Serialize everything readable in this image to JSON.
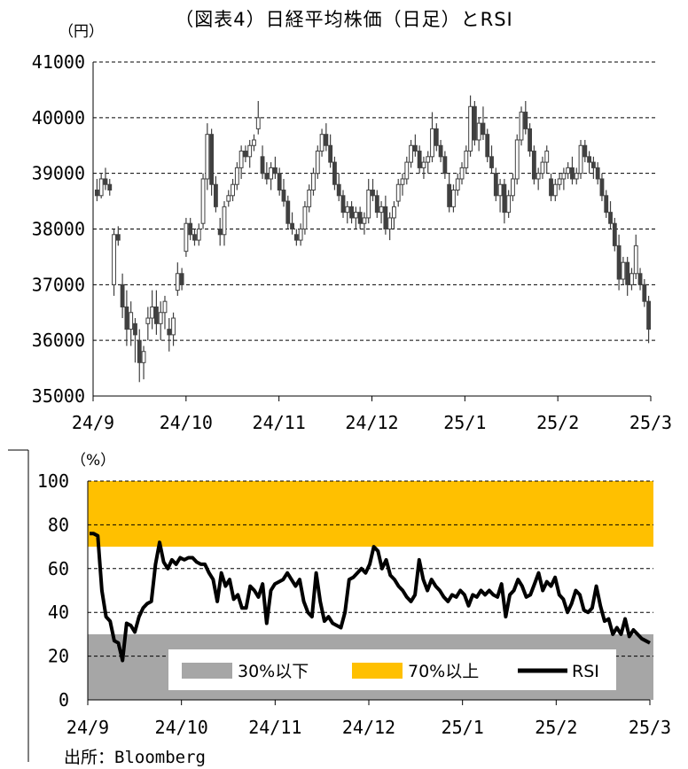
{
  "title": "（図表4）日経平均株価（日足）とRSI",
  "source": "出所：Bloomberg",
  "colors": {
    "up_candle": "#ffffff",
    "down_candle": "#404040",
    "candle_outline": "#404040",
    "band_low": "#a6a6a6",
    "band_high": "#ffc000",
    "rsi_line": "#000000"
  },
  "chart_data": [
    {
      "type": "candlestick",
      "unit_label": "（円）",
      "ylim": [
        35000,
        41000
      ],
      "y_ticks": [
        "35000",
        "36000",
        "37000",
        "38000",
        "39000",
        "40000",
        "41000"
      ],
      "x_ticks": [
        "24/9",
        "24/10",
        "24/11",
        "24/12",
        "25/1",
        "25/2",
        "25/3"
      ],
      "grid": "horizontal dashed",
      "candles": [
        [
          38700,
          38900,
          38500,
          38600
        ],
        [
          38600,
          39000,
          38550,
          38900
        ],
        [
          38900,
          39100,
          38700,
          38800
        ],
        [
          38800,
          38900,
          38600,
          38700
        ],
        [
          37000,
          38000,
          36800,
          37900
        ],
        [
          37900,
          38050,
          37700,
          37800
        ],
        [
          37000,
          37200,
          36400,
          36600
        ],
        [
          36600,
          36900,
          35900,
          36200
        ],
        [
          36200,
          36700,
          35900,
          36500
        ],
        [
          36300,
          36400,
          35600,
          36100
        ],
        [
          36000,
          36200,
          35250,
          35600
        ],
        [
          35600,
          35900,
          35300,
          35800
        ],
        [
          36300,
          36600,
          36000,
          36400
        ],
        [
          36400,
          36900,
          36200,
          36600
        ],
        [
          36600,
          36900,
          36100,
          36300
        ],
        [
          36300,
          36700,
          36000,
          36500
        ],
        [
          36500,
          36800,
          36200,
          36700
        ],
        [
          36200,
          36400,
          35800,
          36100
        ],
        [
          36100,
          36500,
          35900,
          36400
        ],
        [
          36900,
          37400,
          36800,
          37200
        ],
        [
          37200,
          37300,
          36900,
          37000
        ],
        [
          37600,
          38200,
          37500,
          38100
        ],
        [
          38100,
          38200,
          37800,
          37900
        ],
        [
          37900,
          38000,
          37700,
          37800
        ],
        [
          37800,
          38100,
          37700,
          38000
        ],
        [
          38100,
          39000,
          38000,
          38900
        ],
        [
          38900,
          39900,
          38700,
          39700
        ],
        [
          39700,
          39800,
          38600,
          38800
        ],
        [
          38800,
          38950,
          38300,
          38400
        ],
        [
          38000,
          38200,
          37700,
          37900
        ],
        [
          37900,
          38500,
          37700,
          38400
        ],
        [
          38500,
          38700,
          38400,
          38600
        ],
        [
          38600,
          38900,
          38500,
          38800
        ],
        [
          38800,
          39200,
          38700,
          39100
        ],
        [
          39100,
          39500,
          38900,
          39400
        ],
        [
          39400,
          39500,
          39200,
          39300
        ],
        [
          39300,
          39600,
          39100,
          39500
        ],
        [
          39500,
          39700,
          39400,
          39600
        ],
        [
          39800,
          40300,
          39700,
          40000
        ],
        [
          39300,
          39500,
          38900,
          39000
        ],
        [
          39000,
          39200,
          38800,
          38900
        ],
        [
          38900,
          39200,
          38700,
          39100
        ],
        [
          39100,
          39300,
          38900,
          39000
        ],
        [
          39000,
          39100,
          38600,
          38700
        ],
        [
          38700,
          38900,
          38400,
          38500
        ],
        [
          38500,
          38600,
          38000,
          38100
        ],
        [
          38100,
          38300,
          37900,
          38000
        ],
        [
          37900,
          38000,
          37700,
          37800
        ],
        [
          37800,
          38100,
          37700,
          38000
        ],
        [
          38000,
          38500,
          37900,
          38400
        ],
        [
          38400,
          38800,
          38300,
          38700
        ],
        [
          38700,
          39100,
          38600,
          39000
        ],
        [
          39000,
          39500,
          38900,
          39400
        ],
        [
          39400,
          39800,
          39300,
          39700
        ],
        [
          39700,
          39900,
          39400,
          39500
        ],
        [
          39500,
          39700,
          39100,
          39200
        ],
        [
          39200,
          39300,
          38700,
          38800
        ],
        [
          38800,
          39000,
          38500,
          38600
        ],
        [
          38600,
          38700,
          38200,
          38300
        ],
        [
          38300,
          38500,
          38100,
          38400
        ],
        [
          38400,
          38500,
          38100,
          38200
        ],
        [
          38200,
          38400,
          38000,
          38300
        ],
        [
          38300,
          38400,
          38000,
          38100
        ],
        [
          38100,
          38300,
          37900,
          38200
        ],
        [
          38200,
          38900,
          38100,
          38700
        ],
        [
          38700,
          38900,
          38500,
          38600
        ],
        [
          38600,
          38700,
          38200,
          38300
        ],
        [
          38300,
          38500,
          38100,
          38400
        ],
        [
          38400,
          38600,
          37900,
          38000
        ],
        [
          38000,
          38300,
          37800,
          38200
        ],
        [
          38200,
          38500,
          38000,
          38400
        ],
        [
          38500,
          38900,
          38400,
          38800
        ],
        [
          38800,
          39000,
          38600,
          38900
        ],
        [
          38900,
          39300,
          38800,
          39200
        ],
        [
          39200,
          39600,
          39100,
          39500
        ],
        [
          39500,
          39700,
          39300,
          39400
        ],
        [
          39400,
          39500,
          39000,
          39100
        ],
        [
          39100,
          39300,
          38900,
          39200
        ],
        [
          39200,
          39400,
          39000,
          39300
        ],
        [
          39300,
          40100,
          39200,
          39800
        ],
        [
          39800,
          39900,
          39400,
          39500
        ],
        [
          39500,
          39600,
          39200,
          39300
        ],
        [
          39300,
          39400,
          38900,
          39000
        ],
        [
          38800,
          39000,
          38300,
          38400
        ],
        [
          38400,
          38800,
          38300,
          38700
        ],
        [
          38700,
          39000,
          38600,
          38900
        ],
        [
          38900,
          39200,
          38800,
          39100
        ],
        [
          39100,
          39500,
          39000,
          39400
        ],
        [
          39400,
          40400,
          39300,
          40200
        ],
        [
          40200,
          40300,
          39500,
          39600
        ],
        [
          39600,
          40000,
          39400,
          39900
        ],
        [
          39900,
          40200,
          39600,
          39700
        ],
        [
          39700,
          39800,
          39200,
          39300
        ],
        [
          39300,
          39500,
          39000,
          39100
        ],
        [
          39000,
          39100,
          38500,
          38600
        ],
        [
          38600,
          38900,
          38300,
          38800
        ],
        [
          38800,
          38900,
          38100,
          38300
        ],
        [
          38300,
          38700,
          38200,
          38600
        ],
        [
          38600,
          39000,
          38500,
          38900
        ],
        [
          38900,
          39700,
          38800,
          39600
        ],
        [
          39600,
          40200,
          39500,
          40100
        ],
        [
          40100,
          40300,
          39700,
          39800
        ],
        [
          39800,
          39900,
          39300,
          39400
        ],
        [
          39400,
          39500,
          38800,
          38900
        ],
        [
          38900,
          39100,
          38700,
          39000
        ],
        [
          39000,
          39300,
          38900,
          39200
        ],
        [
          39200,
          39500,
          39000,
          39400
        ],
        [
          38900,
          39000,
          38500,
          38600
        ],
        [
          38600,
          38900,
          38500,
          38800
        ],
        [
          38800,
          39000,
          38700,
          38900
        ],
        [
          38900,
          39100,
          38700,
          39000
        ],
        [
          39000,
          39200,
          38900,
          39100
        ],
        [
          39100,
          39300,
          38800,
          38900
        ],
        [
          38900,
          39100,
          38800,
          39000
        ],
        [
          39000,
          39600,
          38900,
          39500
        ],
        [
          39500,
          39600,
          39200,
          39300
        ],
        [
          39300,
          39400,
          39000,
          39200
        ],
        [
          39200,
          39300,
          38900,
          39100
        ],
        [
          39100,
          39200,
          38800,
          38900
        ],
        [
          38900,
          39000,
          38500,
          38600
        ],
        [
          38600,
          38700,
          38200,
          38300
        ],
        [
          38300,
          38500,
          38000,
          38100
        ],
        [
          38100,
          38200,
          37600,
          37700
        ],
        [
          37700,
          37900,
          36900,
          37100
        ],
        [
          37100,
          37500,
          37000,
          37400
        ],
        [
          37400,
          37500,
          36800,
          37000
        ],
        [
          37000,
          37300,
          36900,
          37200
        ],
        [
          37200,
          37900,
          37100,
          37700
        ],
        [
          37200,
          37300,
          36900,
          37000
        ],
        [
          37000,
          37100,
          36600,
          36700
        ],
        [
          36700,
          36800,
          35950,
          36200
        ]
      ]
    },
    {
      "type": "area-bands+line",
      "unit_label": "（%）",
      "ylim": [
        0,
        100
      ],
      "y_ticks": [
        "0",
        "20",
        "40",
        "60",
        "80",
        "100"
      ],
      "x_ticks": [
        "24/9",
        "24/10",
        "24/11",
        "24/12",
        "25/1",
        "25/2",
        "25/3"
      ],
      "grid": "horizontal dashed",
      "bands": [
        {
          "name": "30%以下",
          "from": 0,
          "to": 30
        },
        {
          "name": "70%以上",
          "from": 70,
          "to": 100
        }
      ],
      "series": [
        {
          "name": "RSI",
          "values": [
            76,
            76,
            75,
            50,
            38,
            36,
            27,
            26,
            18,
            35,
            34,
            31,
            38,
            42,
            44,
            45,
            62,
            72,
            63,
            60,
            64,
            62,
            65,
            64,
            65,
            65,
            63,
            62,
            62,
            58,
            55,
            45,
            58,
            52,
            55,
            46,
            48,
            42,
            42,
            52,
            50,
            47,
            53,
            35,
            50,
            53,
            54,
            55,
            58,
            55,
            52,
            55,
            45,
            40,
            38,
            58,
            45,
            36,
            38,
            35,
            34,
            33,
            40,
            55,
            56,
            58,
            60,
            58,
            62,
            70,
            68,
            60,
            64,
            57,
            55,
            52,
            50,
            47,
            45,
            48,
            64,
            55,
            50,
            55,
            52,
            50,
            47,
            45,
            48,
            47,
            50,
            48,
            43,
            48,
            47,
            50,
            48,
            50,
            48,
            47,
            53,
            38,
            48,
            50,
            55,
            52,
            47,
            48,
            53,
            58,
            50,
            54,
            52,
            56,
            48,
            46,
            40,
            44,
            50,
            48,
            41,
            40,
            42,
            52,
            43,
            36,
            37,
            30,
            33,
            30,
            37,
            29,
            32,
            30,
            28,
            27,
            26
          ]
        }
      ],
      "legend": {
        "placement": "bottom-center",
        "entries": [
          "30%以下",
          "70%以上",
          "RSI"
        ]
      }
    }
  ]
}
